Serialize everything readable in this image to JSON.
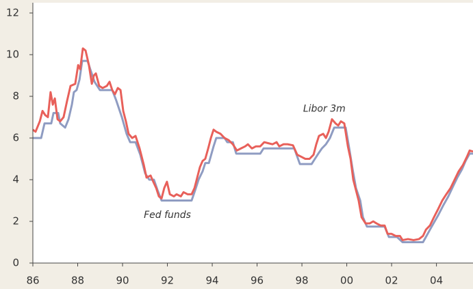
{
  "chart_data": {
    "type": "line",
    "annotations": [
      {
        "text": "Libor 3m",
        "x": 1999.0,
        "y": 7.4
      },
      {
        "text": "Fed funds",
        "x": 1992.0,
        "y": 2.3
      }
    ],
    "xlim": [
      1986,
      2005.63
    ],
    "xticks": [
      {
        "value": 1986,
        "label": "86"
      },
      {
        "value": 1988,
        "label": "88"
      },
      {
        "value": 1990,
        "label": "90"
      },
      {
        "value": 1992,
        "label": "92"
      },
      {
        "value": 1994,
        "label": "94"
      },
      {
        "value": 1996,
        "label": "96"
      },
      {
        "value": 1998,
        "label": "98"
      },
      {
        "value": 2000,
        "label": "00"
      },
      {
        "value": 2002,
        "label": "02"
      },
      {
        "value": 2004,
        "label": "04"
      }
    ],
    "ylim": [
      0,
      12
    ],
    "yticks": [
      0,
      2,
      4,
      6,
      8,
      10,
      12
    ],
    "series": [
      {
        "name": "Fed funds",
        "color": "#8f9cc2",
        "x": [
          1986.0,
          1986.37,
          1986.52,
          1986.82,
          1986.92,
          1987.13,
          1987.22,
          1987.44,
          1987.59,
          1987.74,
          1987.83,
          1987.95,
          1988.08,
          1988.2,
          1988.44,
          1988.56,
          1988.75,
          1988.99,
          1989.54,
          1989.72,
          1989.97,
          1990.18,
          1990.34,
          1990.58,
          1990.79,
          1991.01,
          1991.19,
          1991.4,
          1991.56,
          1991.74,
          1993.08,
          1993.24,
          1993.39,
          1993.57,
          1993.69,
          1993.85,
          1994.06,
          1994.18,
          1994.55,
          1994.67,
          1994.92,
          1995.07,
          1996.14,
          1996.29,
          1997.66,
          1997.91,
          1998.43,
          1998.58,
          1998.73,
          1998.89,
          1999.07,
          1999.25,
          1999.44,
          1999.95,
          2000.11,
          2000.26,
          2000.41,
          2000.6,
          2000.72,
          2000.9,
          2001.69,
          2001.88,
          2002.24,
          2002.49,
          2003.4,
          2003.53,
          2003.71,
          2003.92,
          2004.08,
          2004.32,
          2004.53,
          2004.75,
          2004.93,
          2005.14,
          2005.3,
          2005.48,
          2005.63
        ],
        "values": [
          6.0,
          6.0,
          6.7,
          6.7,
          7.2,
          7.2,
          6.7,
          6.5,
          6.9,
          7.6,
          8.2,
          8.3,
          8.8,
          9.7,
          9.7,
          9.3,
          8.7,
          8.3,
          8.3,
          7.8,
          7.0,
          6.2,
          5.8,
          5.8,
          5.2,
          4.3,
          4.0,
          4.0,
          3.5,
          3.0,
          3.0,
          3.5,
          4.0,
          4.4,
          4.8,
          4.8,
          5.6,
          6.0,
          6.0,
          5.8,
          5.8,
          5.25,
          5.25,
          5.5,
          5.5,
          4.75,
          4.75,
          5.0,
          5.25,
          5.5,
          5.7,
          6.0,
          6.5,
          6.5,
          5.5,
          4.5,
          3.6,
          3.0,
          2.2,
          1.75,
          1.75,
          1.25,
          1.25,
          1.0,
          1.0,
          1.25,
          1.6,
          2.0,
          2.3,
          2.8,
          3.2,
          3.7,
          4.1,
          4.5,
          4.9,
          5.25,
          5.25
        ]
      },
      {
        "name": "Libor 3m",
        "color": "#e8605a",
        "x": [
          1986.0,
          1986.12,
          1986.31,
          1986.43,
          1986.55,
          1986.67,
          1986.79,
          1986.89,
          1986.98,
          1987.1,
          1987.22,
          1987.37,
          1987.53,
          1987.68,
          1987.89,
          1988.02,
          1988.11,
          1988.23,
          1988.35,
          1988.5,
          1988.63,
          1988.72,
          1988.81,
          1988.96,
          1989.11,
          1989.3,
          1989.42,
          1989.54,
          1989.66,
          1989.79,
          1989.91,
          1990.03,
          1990.15,
          1990.27,
          1990.43,
          1990.58,
          1990.76,
          1990.95,
          1991.07,
          1991.25,
          1991.37,
          1991.5,
          1991.62,
          1991.74,
          1991.86,
          1991.98,
          1992.11,
          1992.29,
          1992.41,
          1992.6,
          1992.72,
          1992.9,
          1993.08,
          1993.21,
          1993.33,
          1993.45,
          1993.57,
          1993.69,
          1993.82,
          1993.94,
          1994.06,
          1994.18,
          1994.37,
          1994.55,
          1994.73,
          1994.92,
          1995.1,
          1995.28,
          1995.47,
          1995.59,
          1995.77,
          1995.95,
          1996.14,
          1996.32,
          1996.5,
          1996.69,
          1996.87,
          1996.99,
          1997.18,
          1997.36,
          1997.6,
          1997.79,
          1997.97,
          1998.15,
          1998.34,
          1998.52,
          1998.64,
          1998.76,
          1998.95,
          1999.07,
          1999.19,
          1999.34,
          1999.5,
          1999.62,
          1999.74,
          1999.89,
          2000.05,
          2000.17,
          2000.29,
          2000.41,
          2000.53,
          2000.66,
          2000.84,
          2001.02,
          2001.18,
          2001.33,
          2001.51,
          2001.69,
          2001.82,
          2002.0,
          2002.18,
          2002.37,
          2002.49,
          2002.73,
          2002.98,
          2003.22,
          2003.4,
          2003.53,
          2003.71,
          2003.89,
          2004.08,
          2004.26,
          2004.44,
          2004.63,
          2004.81,
          2004.99,
          2005.18,
          2005.36,
          2005.48,
          2005.63
        ],
        "values": [
          6.4,
          6.3,
          6.8,
          7.3,
          7.1,
          7.0,
          8.2,
          7.6,
          7.9,
          6.9,
          6.8,
          7.0,
          7.8,
          8.5,
          8.6,
          9.5,
          9.3,
          10.3,
          10.2,
          9.5,
          8.6,
          9.0,
          9.1,
          8.5,
          8.4,
          8.5,
          8.7,
          8.3,
          8.1,
          8.4,
          8.3,
          7.3,
          6.8,
          6.2,
          6.0,
          6.1,
          5.5,
          4.7,
          4.1,
          4.2,
          3.9,
          3.6,
          3.2,
          3.1,
          3.6,
          3.9,
          3.3,
          3.2,
          3.3,
          3.2,
          3.4,
          3.3,
          3.3,
          3.6,
          4.1,
          4.6,
          4.9,
          5.0,
          5.5,
          6.0,
          6.4,
          6.3,
          6.2,
          6.0,
          5.9,
          5.7,
          5.4,
          5.5,
          5.6,
          5.7,
          5.5,
          5.6,
          5.6,
          5.8,
          5.75,
          5.7,
          5.8,
          5.6,
          5.7,
          5.7,
          5.65,
          5.2,
          5.1,
          5.0,
          5.0,
          5.2,
          5.7,
          6.1,
          6.2,
          6.0,
          6.3,
          6.9,
          6.7,
          6.6,
          6.8,
          6.7,
          5.6,
          5.0,
          4.0,
          3.5,
          3.0,
          2.2,
          1.9,
          1.9,
          2.0,
          1.9,
          1.8,
          1.8,
          1.4,
          1.4,
          1.3,
          1.3,
          1.1,
          1.15,
          1.1,
          1.15,
          1.3,
          1.6,
          1.8,
          2.2,
          2.6,
          3.0,
          3.3,
          3.6,
          4.0,
          4.4,
          4.7,
          5.1,
          5.4,
          5.35
        ]
      }
    ]
  }
}
